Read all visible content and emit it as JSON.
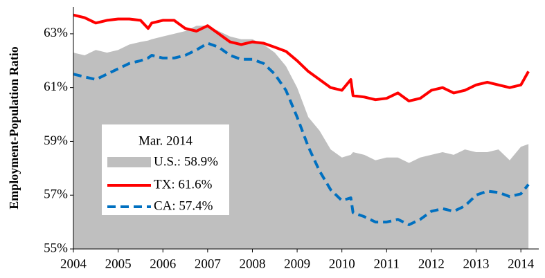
{
  "chart_data": {
    "type": "line",
    "y_label": "Employment-Population Ratio",
    "legend_title": "Mar. 2014",
    "x": [
      2004,
      2004.25,
      2004.5,
      2004.75,
      2005,
      2005.25,
      2005.5,
      2005.67,
      2005.75,
      2006,
      2006.25,
      2006.5,
      2006.75,
      2007,
      2007.25,
      2007.5,
      2007.75,
      2008,
      2008.25,
      2008.5,
      2008.75,
      2009,
      2009.25,
      2009.5,
      2009.75,
      2010,
      2010.2,
      2010.25,
      2010.5,
      2010.75,
      2011,
      2011.25,
      2011.5,
      2011.75,
      2012,
      2012.25,
      2012.5,
      2012.75,
      2013,
      2013.25,
      2013.5,
      2013.75,
      2014,
      2014.17
    ],
    "series": [
      {
        "name": "U.S.: 58.9%",
        "color": "#bfbfbf",
        "style": "area",
        "values": [
          62.3,
          62.2,
          62.4,
          62.3,
          62.4,
          62.6,
          62.7,
          62.75,
          62.8,
          62.9,
          63.0,
          63.1,
          63.3,
          63.3,
          63.1,
          62.9,
          62.8,
          62.8,
          62.6,
          62.3,
          61.8,
          61.0,
          59.9,
          59.4,
          58.7,
          58.4,
          58.5,
          58.6,
          58.5,
          58.3,
          58.4,
          58.4,
          58.2,
          58.4,
          58.5,
          58.6,
          58.5,
          58.7,
          58.6,
          58.6,
          58.7,
          58.3,
          58.8,
          58.9
        ]
      },
      {
        "name": "TX: 61.6%",
        "color": "#ff0000",
        "style": "solid",
        "values": [
          63.7,
          63.6,
          63.4,
          63.5,
          63.55,
          63.55,
          63.5,
          63.2,
          63.4,
          63.5,
          63.5,
          63.2,
          63.1,
          63.3,
          63.0,
          62.7,
          62.6,
          62.7,
          62.65,
          62.5,
          62.35,
          62.0,
          61.6,
          61.3,
          61.0,
          60.9,
          61.3,
          60.7,
          60.65,
          60.55,
          60.6,
          60.8,
          60.5,
          60.6,
          60.9,
          61.0,
          60.8,
          60.9,
          61.1,
          61.2,
          61.1,
          61.0,
          61.1,
          61.6
        ]
      },
      {
        "name": "CA: 57.4%",
        "color": "#0070c0",
        "style": "dashed",
        "values": [
          61.5,
          61.4,
          61.3,
          61.5,
          61.7,
          61.9,
          62.0,
          62.1,
          62.2,
          62.1,
          62.1,
          62.2,
          62.4,
          62.65,
          62.5,
          62.2,
          62.05,
          62.05,
          61.9,
          61.5,
          60.9,
          59.9,
          58.8,
          57.9,
          57.2,
          56.8,
          56.9,
          56.35,
          56.2,
          56.0,
          56.0,
          56.1,
          55.9,
          56.1,
          56.4,
          56.5,
          56.4,
          56.6,
          57.0,
          57.15,
          57.1,
          56.95,
          57.05,
          57.4
        ]
      }
    ],
    "xlim": [
      2004,
      2014.4
    ],
    "xticks": [
      2004,
      2005,
      2006,
      2007,
      2008,
      2009,
      2010,
      2011,
      2012,
      2013,
      2014
    ],
    "ylim": [
      55,
      64
    ],
    "yticks": [
      {
        "value": 55,
        "label": "55%"
      },
      {
        "value": 57,
        "label": "57%"
      },
      {
        "value": 59,
        "label": "59%"
      },
      {
        "value": 61,
        "label": "61%"
      },
      {
        "value": 63,
        "label": "63%"
      }
    ]
  }
}
